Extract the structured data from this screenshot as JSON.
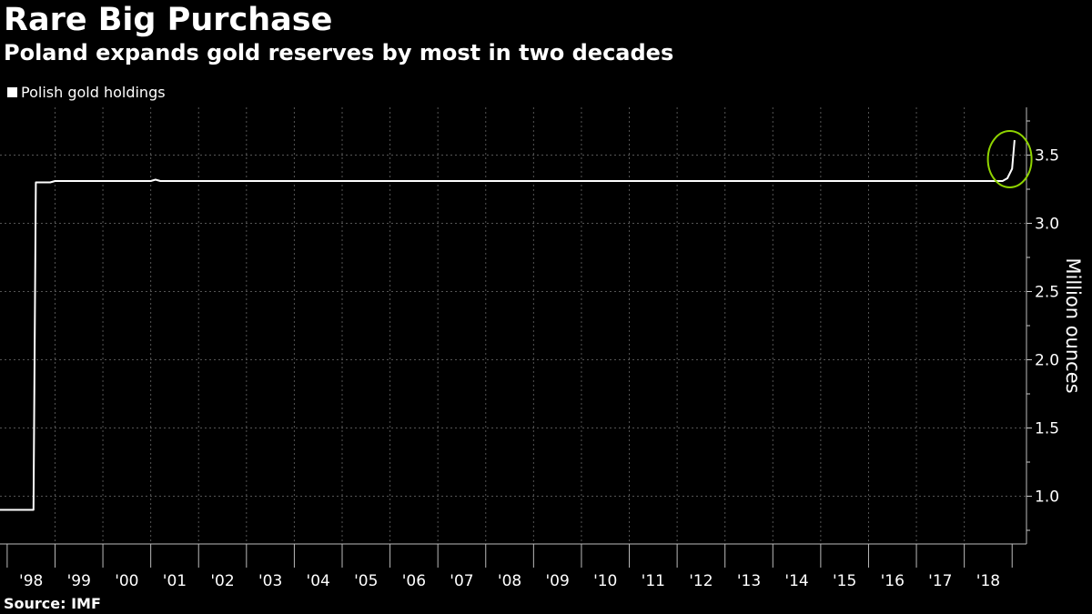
{
  "header": {
    "title": "Rare Big Purchase",
    "subtitle": "Poland expands gold reserves by most in two decades"
  },
  "legend": {
    "label": "Polish gold holdings"
  },
  "footer": {
    "source": "Source: IMF"
  },
  "colors": {
    "background": "#000000",
    "line": "#ffffff",
    "grid": "#555555",
    "highlight": "#8fd400"
  },
  "chart_data": {
    "type": "line",
    "title": "Rare Big Purchase",
    "subtitle": "Poland expands gold reserves by most in two decades",
    "ylabel": "Million ounces",
    "ylim": [
      0.65,
      3.85
    ],
    "yticks": [
      1.0,
      1.5,
      2.0,
      2.5,
      3.0,
      3.5
    ],
    "ytick_labels": [
      "1.0",
      "1.5",
      "2.0",
      "2.5",
      "3.0",
      "3.5"
    ],
    "xlim": [
      1997.35,
      2018.8
    ],
    "xticks": [
      1998,
      1999,
      2000,
      2001,
      2002,
      2003,
      2004,
      2005,
      2006,
      2007,
      2008,
      2009,
      2010,
      2011,
      2012,
      2013,
      2014,
      2015,
      2016,
      2017,
      2018
    ],
    "xtick_labels": [
      "'98",
      "'99",
      "'00",
      "'01",
      "'02",
      "'03",
      "'04",
      "'05",
      "'06",
      "'07",
      "'08",
      "'09",
      "'10",
      "'11",
      "'12",
      "'13",
      "'14",
      "'15",
      "'16",
      "'17",
      "'18"
    ],
    "grid": true,
    "legend_position": "top-left",
    "y_axis_position": "right",
    "series": [
      {
        "name": "Polish gold holdings",
        "x": [
          1997.35,
          1998.05,
          1998.1,
          1998.4,
          1998.5,
          1999.0,
          2000.5,
          2000.6,
          2000.7,
          2018.3,
          2018.4,
          2018.5,
          2018.55
        ],
        "y": [
          0.9,
          0.9,
          3.3,
          3.3,
          3.31,
          3.31,
          3.31,
          3.32,
          3.31,
          3.31,
          3.33,
          3.4,
          3.61
        ]
      }
    ],
    "annotations": [
      {
        "type": "circle",
        "x": 2018.45,
        "y": 3.47,
        "description": "highlighted recent increase"
      }
    ],
    "source": "Source: IMF"
  }
}
